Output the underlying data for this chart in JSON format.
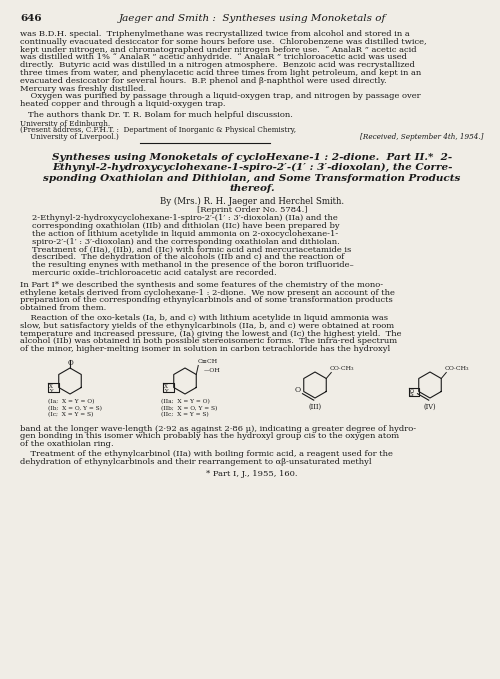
{
  "page_bg": "#f0ede6",
  "text_color": "#1a1a1a",
  "fig_width": 5.0,
  "fig_height": 6.79,
  "dpi": 100,
  "header_num": "646",
  "header_title": "Jaeger and Smith :  Syntheses using Monoketals of",
  "body_top": [
    "was B.D.H. special.  Triphenylmethane was recrystallized twice from alcohol and stored in a",
    "continually evacuated desiccator for some hours before use.  Chlorobenzene was distilled twice,",
    "kept under nitrogen, and chromatographed under nitrogen before use.  “ AnalaR ” acetic acid",
    "was distilled with 1% “ AnalaR ” acetic anhydride.  “ AnalaR ” trichloroacetic acid was used",
    "directly.  Butyric acid was distilled in a nitrogen atmosphere.  Benzoic acid was recrystallized",
    "three times from water, and phenylacetic acid three times from light petroleum, and kept in an",
    "evacuated desiccator for several hours.  B.P. phenol and β-naphthol were used directly.",
    "Mercury was freshly distilled.",
    "    Oxygen was purified by passage through a liquid-oxygen trap, and nitrogen by passage over",
    "heated copper and through a liquid-oxygen trap."
  ],
  "ack": "The authors thank Dr. T. R. Bolam for much helpful discussion.",
  "aff1": "University of Edinburgh.",
  "aff2": "(Present address, C.F.H.T. :  Department of Inorganic & Physical Chemistry,",
  "aff3": "University of Liverpool.)",
  "received": "[Received, September 4th, 1954.]",
  "article_title": [
    "Syntheses using Monoketals of cycloHexane-1 : 2-dione.  Part II.*  2-",
    "Ethynyl-2-hydroxycyclohexane-1-spiro-2′-(1′ : 3′-dioxolan), the Corre-",
    "sponding Oxathiolan and Dithiolan, and Some Transformation Products",
    "thereof."
  ],
  "byline": "By (Mrs.) R. H. Jaeger and Herchel Smith.",
  "reprint": "[Reprint Order No. 5784.]",
  "abstract": [
    "2-Ethynyl-2-hydroxycyclohexane-1-spiro-2′-(1′ : 3′-dioxolan) (IIa) and the",
    "corresponding oxathiolan (IIb) and dithiolan (IIc) have been prepared by",
    "the action of lithium acetylide in liquid ammonia on 2-oxocyclohexane-1-",
    "spiro-2′-(1′ : 3′-dioxolan) and the corresponding oxathiolan and dithiolan.",
    "Treatment of (IIa), (IIb), and (IIc) with formic acid and mercuriacetamide is",
    "described.  The dehydration of the alcohols (IIb and c) and the reaction of",
    "the resulting enynes with methanol in the presence of the boron trifluoride–",
    "mercuric oxide–trichloroacetic acid catalyst are recorded."
  ],
  "para1": [
    "In Part I* we described the synthesis and some features of the chemistry of the mono-",
    "ethylene ketals derived from cyclohexane-1 : 2-dione.  We now present an account of the",
    "preparation of the corresponding ethynylcarbinols and of some transformation products",
    "obtained from them."
  ],
  "para2": [
    "    Reaction of the oxo-ketals (Ia, b, and c) with lithium acetylide in liquid ammonia was",
    "slow, but satisfactory yields of the ethynylcarbinols (IIa, b, and c) were obtained at room",
    "temperature and increased pressure, (Ia) giving the lowest and (Ic) the highest yield.  The",
    "alcohol (IIb) was obtained in both possible stereoisomeric forms.  The infra-red spectrum",
    "of the minor, higher-melting isomer in solution in carbon tetrachloride has the hydroxyl"
  ],
  "para3": [
    "band at the longer wave-length (2·92 as against 2·86 μ), indicating a greater degree of hydro-",
    "gen bonding in this isomer which probably has the hydroxyl group cis to the oxygen atom",
    "of the oxathiolan ring."
  ],
  "para4": [
    "    Treatment of the ethynylcarbinol (IIa) with boiling formic acid, a reagent used for the",
    "dehydration of ethynylcarbinols and their rearrangement to αβ-unsaturated methyl"
  ],
  "footnote": "* Part I, J., 1955, 160.",
  "labels_I": [
    "(Ia;  X = Y = O)",
    "(Ib;  X = O, Y = S)",
    "(Ic;  X = Y = S)"
  ],
  "labels_II": [
    "(IIa;  X = Y = O)",
    "(IIb;  X = O, Y = S)",
    "(IIc;  X = Y = S)"
  ],
  "label_III": "(III)",
  "label_IV": "(IV)"
}
